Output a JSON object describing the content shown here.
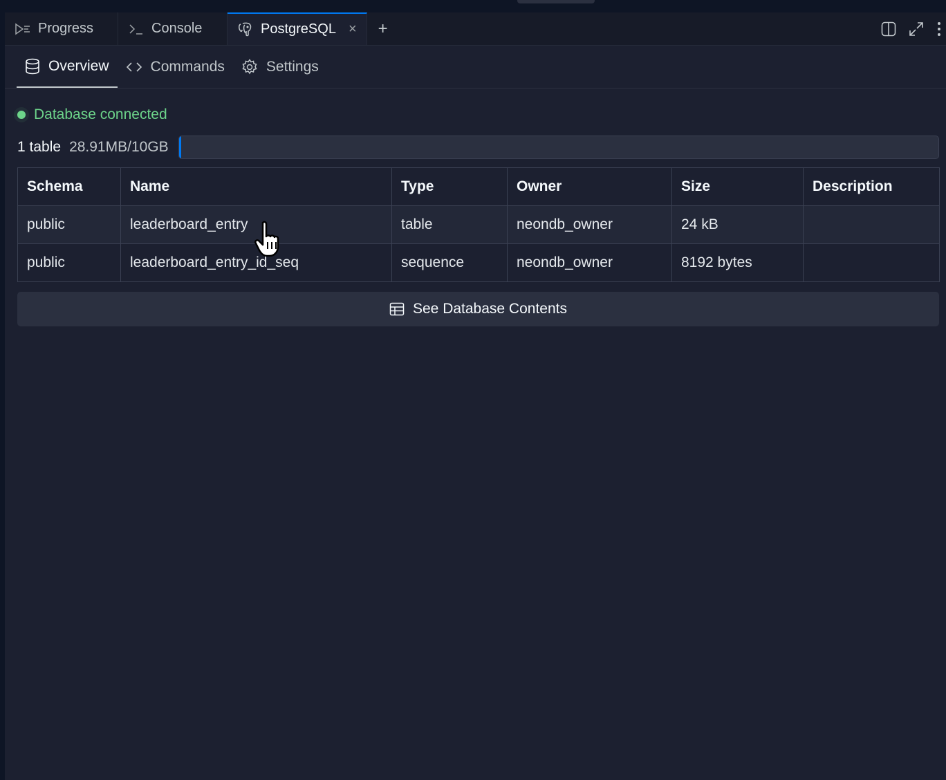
{
  "tabs": [
    {
      "label": "Progress",
      "icon": "progress-icon"
    },
    {
      "label": "Console",
      "icon": "terminal-icon"
    },
    {
      "label": "PostgreSQL",
      "icon": "postgresql-elephant-icon",
      "active": true,
      "close": "×"
    }
  ],
  "new_tab": "+",
  "subtabs": [
    {
      "label": "Overview",
      "icon": "database-icon",
      "active": true
    },
    {
      "label": "Commands",
      "icon": "code-icon"
    },
    {
      "label": "Settings",
      "icon": "gear-icon"
    }
  ],
  "status": {
    "text": "Database connected",
    "color": "#6dd48a"
  },
  "storage": {
    "tables": "1 table",
    "usage": "28.91MB/10GB",
    "fraction": 0.0028
  },
  "table": {
    "headers": [
      "Schema",
      "Name",
      "Type",
      "Owner",
      "Size",
      "Description"
    ],
    "rows": [
      [
        "public",
        "leaderboard_entry",
        "table",
        "neondb_owner",
        "24 kB",
        ""
      ],
      [
        "public",
        "leaderboard_entry_id_seq",
        "sequence",
        "neondb_owner",
        "8192 bytes",
        ""
      ]
    ]
  },
  "see_contents": "See Database Contents",
  "accent": "#0079f2"
}
